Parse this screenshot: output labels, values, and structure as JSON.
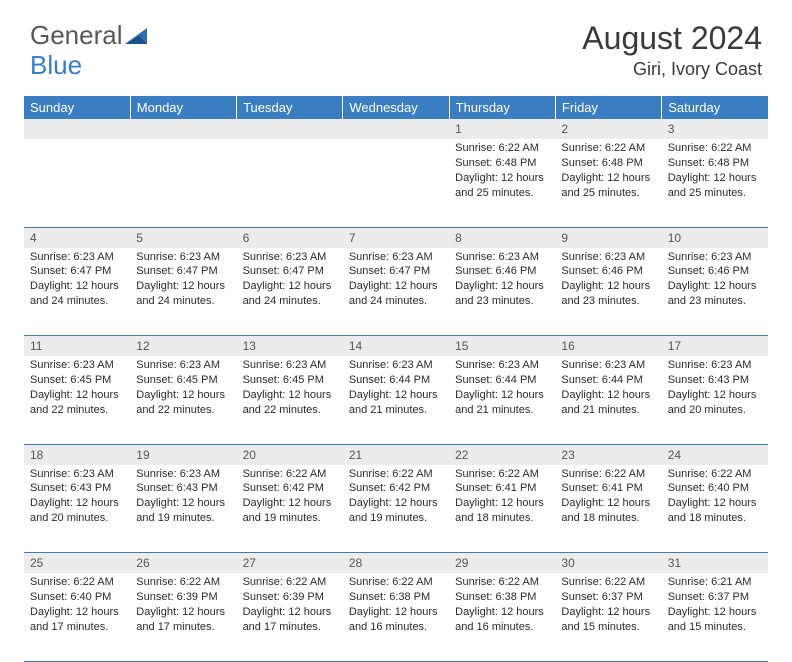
{
  "logo": {
    "part1": "General",
    "part2": "Blue"
  },
  "header": {
    "month": "August 2024",
    "location": "Giri, Ivory Coast"
  },
  "colors": {
    "header_bg": "#3a7ec1",
    "header_text": "#ffffff",
    "daynum_bg": "#ececec",
    "border": "#3a7ec1",
    "text": "#333333"
  },
  "weekdays": [
    "Sunday",
    "Monday",
    "Tuesday",
    "Wednesday",
    "Thursday",
    "Friday",
    "Saturday"
  ],
  "weeks": [
    [
      null,
      null,
      null,
      null,
      {
        "n": "1",
        "sr": "6:22 AM",
        "ss": "6:48 PM",
        "dl": "12 hours and 25 minutes."
      },
      {
        "n": "2",
        "sr": "6:22 AM",
        "ss": "6:48 PM",
        "dl": "12 hours and 25 minutes."
      },
      {
        "n": "3",
        "sr": "6:22 AM",
        "ss": "6:48 PM",
        "dl": "12 hours and 25 minutes."
      }
    ],
    [
      {
        "n": "4",
        "sr": "6:23 AM",
        "ss": "6:47 PM",
        "dl": "12 hours and 24 minutes."
      },
      {
        "n": "5",
        "sr": "6:23 AM",
        "ss": "6:47 PM",
        "dl": "12 hours and 24 minutes."
      },
      {
        "n": "6",
        "sr": "6:23 AM",
        "ss": "6:47 PM",
        "dl": "12 hours and 24 minutes."
      },
      {
        "n": "7",
        "sr": "6:23 AM",
        "ss": "6:47 PM",
        "dl": "12 hours and 24 minutes."
      },
      {
        "n": "8",
        "sr": "6:23 AM",
        "ss": "6:46 PM",
        "dl": "12 hours and 23 minutes."
      },
      {
        "n": "9",
        "sr": "6:23 AM",
        "ss": "6:46 PM",
        "dl": "12 hours and 23 minutes."
      },
      {
        "n": "10",
        "sr": "6:23 AM",
        "ss": "6:46 PM",
        "dl": "12 hours and 23 minutes."
      }
    ],
    [
      {
        "n": "11",
        "sr": "6:23 AM",
        "ss": "6:45 PM",
        "dl": "12 hours and 22 minutes."
      },
      {
        "n": "12",
        "sr": "6:23 AM",
        "ss": "6:45 PM",
        "dl": "12 hours and 22 minutes."
      },
      {
        "n": "13",
        "sr": "6:23 AM",
        "ss": "6:45 PM",
        "dl": "12 hours and 22 minutes."
      },
      {
        "n": "14",
        "sr": "6:23 AM",
        "ss": "6:44 PM",
        "dl": "12 hours and 21 minutes."
      },
      {
        "n": "15",
        "sr": "6:23 AM",
        "ss": "6:44 PM",
        "dl": "12 hours and 21 minutes."
      },
      {
        "n": "16",
        "sr": "6:23 AM",
        "ss": "6:44 PM",
        "dl": "12 hours and 21 minutes."
      },
      {
        "n": "17",
        "sr": "6:23 AM",
        "ss": "6:43 PM",
        "dl": "12 hours and 20 minutes."
      }
    ],
    [
      {
        "n": "18",
        "sr": "6:23 AM",
        "ss": "6:43 PM",
        "dl": "12 hours and 20 minutes."
      },
      {
        "n": "19",
        "sr": "6:23 AM",
        "ss": "6:43 PM",
        "dl": "12 hours and 19 minutes."
      },
      {
        "n": "20",
        "sr": "6:22 AM",
        "ss": "6:42 PM",
        "dl": "12 hours and 19 minutes."
      },
      {
        "n": "21",
        "sr": "6:22 AM",
        "ss": "6:42 PM",
        "dl": "12 hours and 19 minutes."
      },
      {
        "n": "22",
        "sr": "6:22 AM",
        "ss": "6:41 PM",
        "dl": "12 hours and 18 minutes."
      },
      {
        "n": "23",
        "sr": "6:22 AM",
        "ss": "6:41 PM",
        "dl": "12 hours and 18 minutes."
      },
      {
        "n": "24",
        "sr": "6:22 AM",
        "ss": "6:40 PM",
        "dl": "12 hours and 18 minutes."
      }
    ],
    [
      {
        "n": "25",
        "sr": "6:22 AM",
        "ss": "6:40 PM",
        "dl": "12 hours and 17 minutes."
      },
      {
        "n": "26",
        "sr": "6:22 AM",
        "ss": "6:39 PM",
        "dl": "12 hours and 17 minutes."
      },
      {
        "n": "27",
        "sr": "6:22 AM",
        "ss": "6:39 PM",
        "dl": "12 hours and 17 minutes."
      },
      {
        "n": "28",
        "sr": "6:22 AM",
        "ss": "6:38 PM",
        "dl": "12 hours and 16 minutes."
      },
      {
        "n": "29",
        "sr": "6:22 AM",
        "ss": "6:38 PM",
        "dl": "12 hours and 16 minutes."
      },
      {
        "n": "30",
        "sr": "6:22 AM",
        "ss": "6:37 PM",
        "dl": "12 hours and 15 minutes."
      },
      {
        "n": "31",
        "sr": "6:21 AM",
        "ss": "6:37 PM",
        "dl": "12 hours and 15 minutes."
      }
    ]
  ],
  "labels": {
    "sunrise": "Sunrise:",
    "sunset": "Sunset:",
    "daylight": "Daylight:"
  }
}
